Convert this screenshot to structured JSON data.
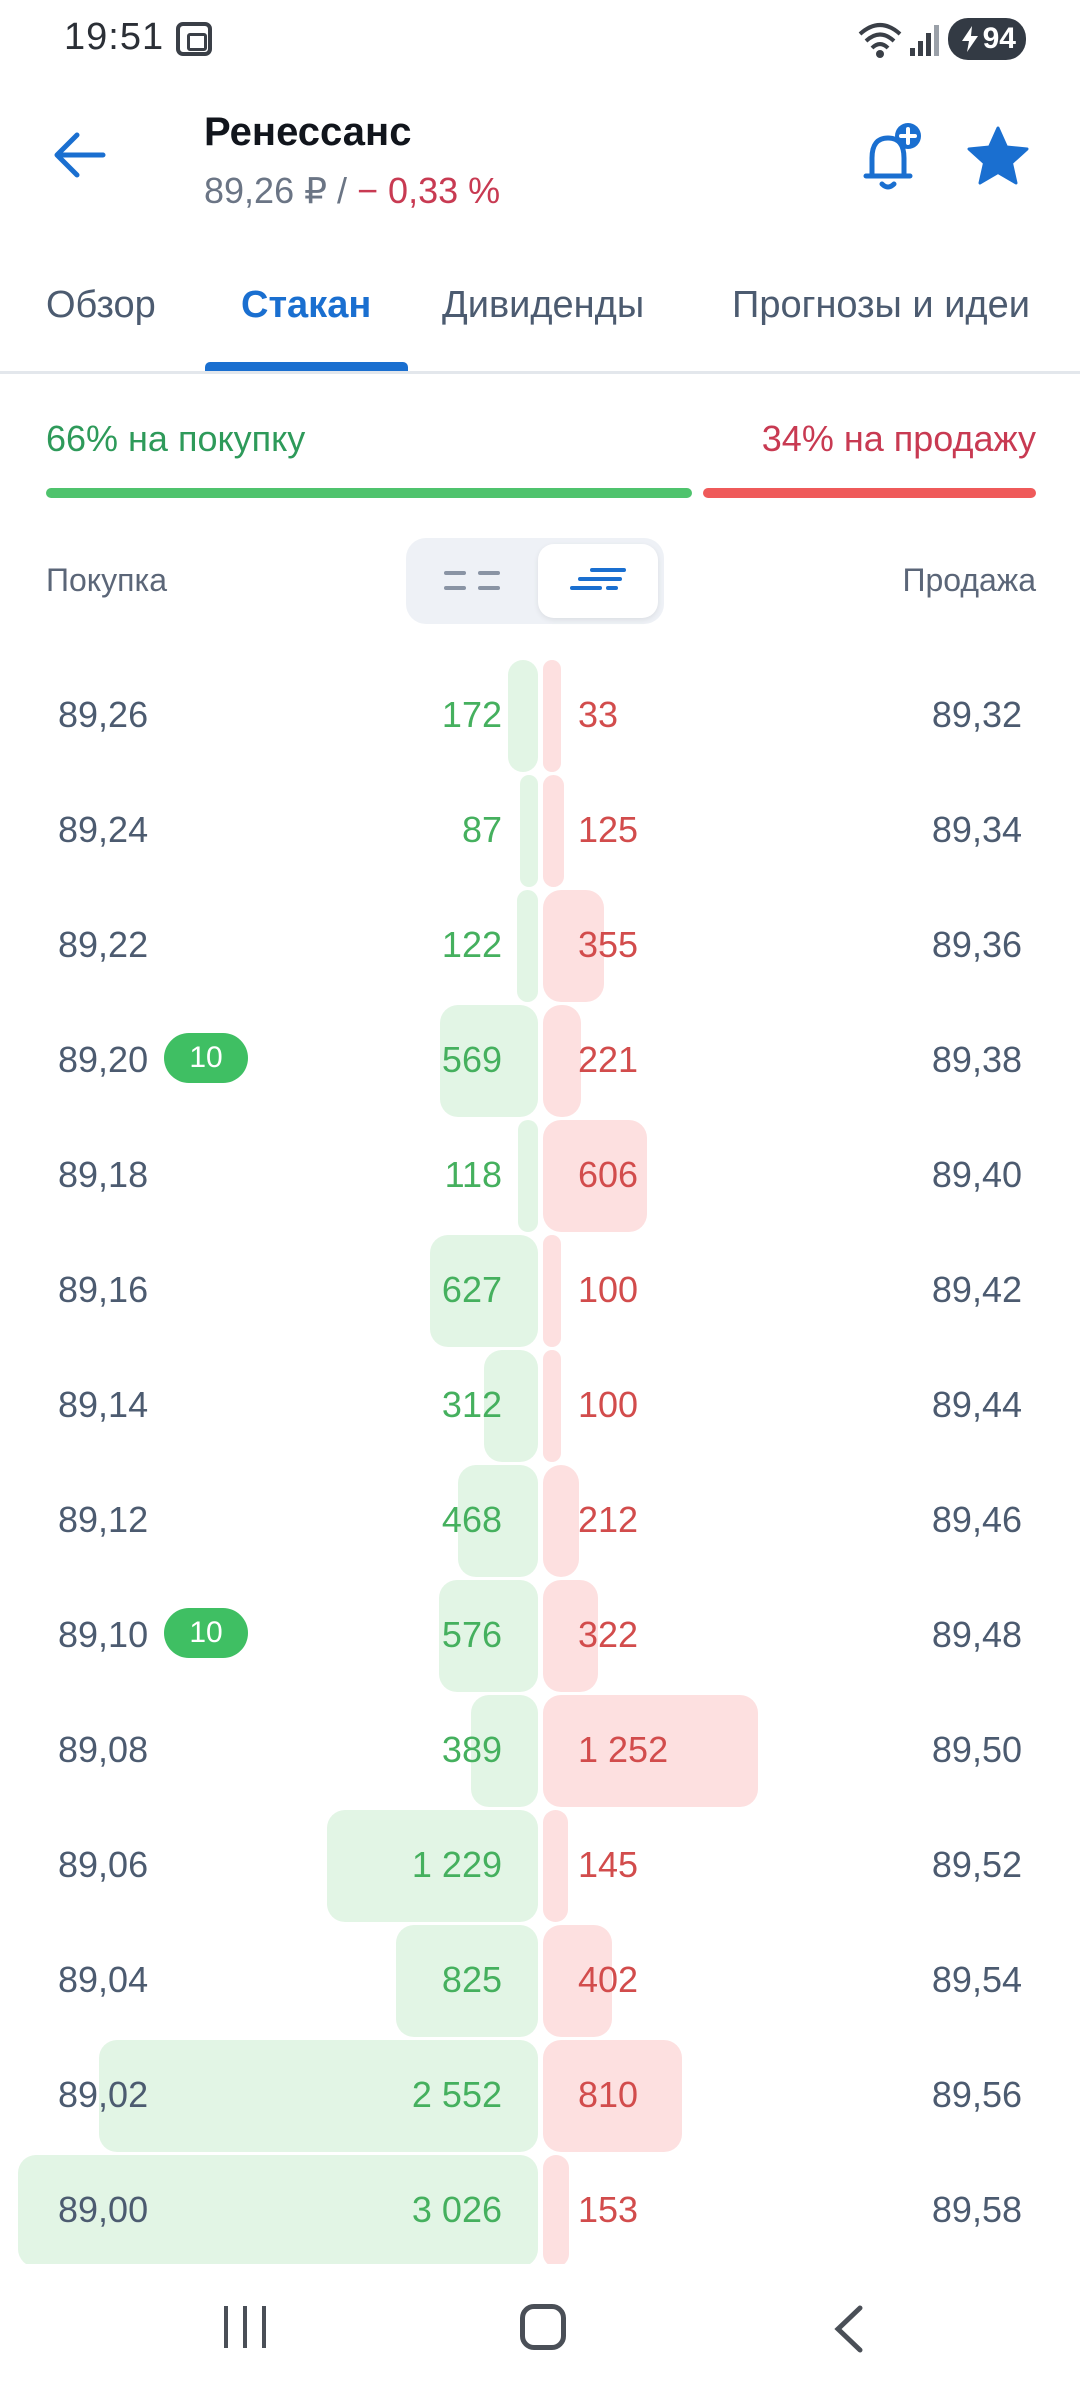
{
  "status_bar": {
    "time": "19:51",
    "battery": "94"
  },
  "header": {
    "title": "Ренессанс",
    "price": "89,26 ₽",
    "separator": " / ",
    "change": "− 0,33 %"
  },
  "tabs": [
    {
      "label": "Обзор"
    },
    {
      "label": "Стакан"
    },
    {
      "label": "Дивиденды"
    },
    {
      "label": "Прогнозы и идеи"
    }
  ],
  "ratio": {
    "buy_label": "66% на покупку",
    "sell_label": "34% на продажу",
    "buy_pct": 66,
    "sell_pct": 34
  },
  "columns": {
    "buy": "Покупка",
    "sell": "Продажа"
  },
  "colors": {
    "accent": "#1a6fd0",
    "buy": "#45b05e",
    "sell": "#d24c4c",
    "negative": "#c83a52"
  },
  "order_book": [
    {
      "bid_price": "89,26",
      "bid_vol": "172",
      "bid_qty": 172,
      "badge": "",
      "ask_vol": "33",
      "ask_qty": 33,
      "ask_price": "89,32"
    },
    {
      "bid_price": "89,24",
      "bid_vol": "87",
      "bid_qty": 87,
      "badge": "",
      "ask_vol": "125",
      "ask_qty": 125,
      "ask_price": "89,34"
    },
    {
      "bid_price": "89,22",
      "bid_vol": "122",
      "bid_qty": 122,
      "badge": "",
      "ask_vol": "355",
      "ask_qty": 355,
      "ask_price": "89,36"
    },
    {
      "bid_price": "89,20",
      "bid_vol": "569",
      "bid_qty": 569,
      "badge": "10",
      "ask_vol": "221",
      "ask_qty": 221,
      "ask_price": "89,38"
    },
    {
      "bid_price": "89,18",
      "bid_vol": "118",
      "bid_qty": 118,
      "badge": "",
      "ask_vol": "606",
      "ask_qty": 606,
      "ask_price": "89,40"
    },
    {
      "bid_price": "89,16",
      "bid_vol": "627",
      "bid_qty": 627,
      "badge": "",
      "ask_vol": "100",
      "ask_qty": 100,
      "ask_price": "89,42"
    },
    {
      "bid_price": "89,14",
      "bid_vol": "312",
      "bid_qty": 312,
      "badge": "",
      "ask_vol": "100",
      "ask_qty": 100,
      "ask_price": "89,44"
    },
    {
      "bid_price": "89,12",
      "bid_vol": "468",
      "bid_qty": 468,
      "badge": "",
      "ask_vol": "212",
      "ask_qty": 212,
      "ask_price": "89,46"
    },
    {
      "bid_price": "89,10",
      "bid_vol": "576",
      "bid_qty": 576,
      "badge": "10",
      "ask_vol": "322",
      "ask_qty": 322,
      "ask_price": "89,48"
    },
    {
      "bid_price": "89,08",
      "bid_vol": "389",
      "bid_qty": 389,
      "badge": "",
      "ask_vol": "1 252",
      "ask_qty": 1252,
      "ask_price": "89,50"
    },
    {
      "bid_price": "89,06",
      "bid_vol": "1 229",
      "bid_qty": 1229,
      "badge": "",
      "ask_vol": "145",
      "ask_qty": 145,
      "ask_price": "89,52"
    },
    {
      "bid_price": "89,04",
      "bid_vol": "825",
      "bid_qty": 825,
      "badge": "",
      "ask_vol": "402",
      "ask_qty": 402,
      "ask_price": "89,54"
    },
    {
      "bid_price": "89,02",
      "bid_vol": "2 552",
      "bid_qty": 2552,
      "badge": "",
      "ask_vol": "810",
      "ask_qty": 810,
      "ask_price": "89,56"
    },
    {
      "bid_price": "89,00",
      "bid_vol": "3 026",
      "bid_qty": 3026,
      "badge": "",
      "ask_vol": "153",
      "ask_qty": 153,
      "ask_price": "89,58"
    }
  ]
}
